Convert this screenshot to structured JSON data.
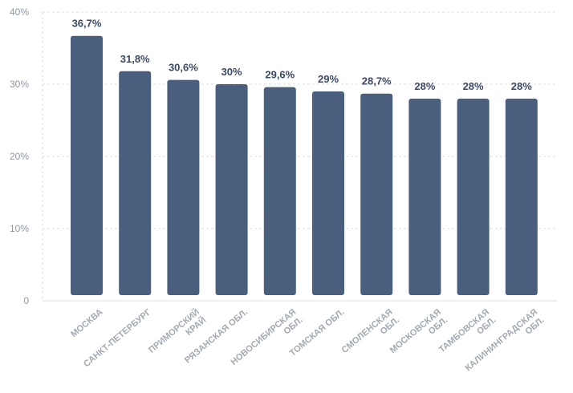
{
  "chart_data": {
    "type": "bar",
    "categories": [
      [
        "МОСКВА"
      ],
      [
        "САНКТ-ПЕТЕРБУРГ"
      ],
      [
        "ПРИМОРСКИЙ",
        "КРАЙ"
      ],
      [
        "РЯЗАНСКАЯ ОБЛ."
      ],
      [
        "НОВОСИБИРСКАЯ",
        "ОБЛ."
      ],
      [
        "ТОМСКАЯ ОБЛ."
      ],
      [
        "СМОЛЕНСКАЯ",
        "ОБЛ."
      ],
      [
        "МОСКОВСКАЯ",
        "ОБЛ."
      ],
      [
        "ТАМБОВСКАЯ",
        "ОБЛ."
      ],
      [
        "КАЛИНИНГРАДСКАЯ",
        "ОБЛ."
      ]
    ],
    "values": [
      36.7,
      31.8,
      30.6,
      30,
      29.6,
      29,
      28.7,
      28,
      28,
      28
    ],
    "data_labels": [
      "36,7%",
      "31,8%",
      "30,6%",
      "30%",
      "29,6%",
      "29%",
      "28,7%",
      "28%",
      "28%",
      "28%"
    ],
    "ylim": [
      0,
      40
    ],
    "yticks": [
      0,
      10,
      20,
      30,
      40
    ],
    "ytick_labels": [
      "0",
      "10%",
      "20%",
      "30%",
      "40%"
    ],
    "grid": true,
    "colors": {
      "bar": "#4a5f7e",
      "label": "#3b4a63",
      "tick": "#8f96a3",
      "grid": "#d9dde3"
    }
  }
}
